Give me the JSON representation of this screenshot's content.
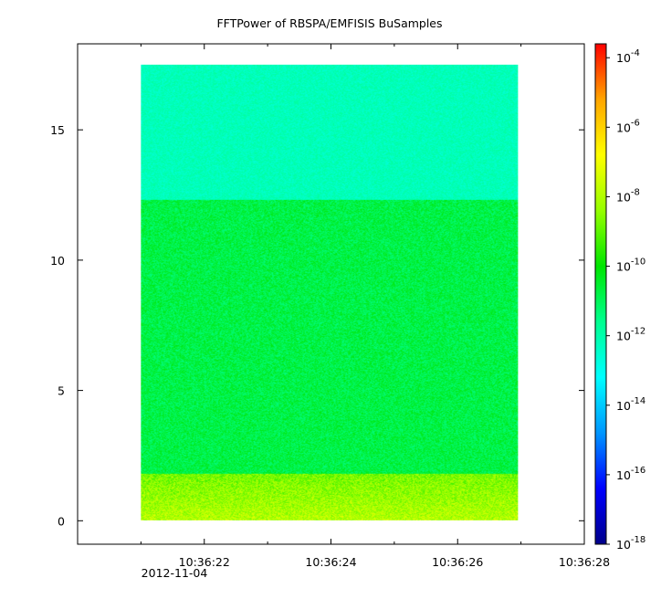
{
  "chart_data": {
    "type": "heatmap",
    "title": "FFTPower of RBSPA/EMFISIS  BuSamples",
    "xlabel": "",
    "ylabel": "",
    "x_ticks": [
      {
        "value": 2,
        "label": "10:36:22"
      },
      {
        "value": 4,
        "label": "10:36:24"
      },
      {
        "value": 6,
        "label": "10:36:26"
      },
      {
        "value": 8,
        "label": "10:36:28"
      }
    ],
    "x_minor_ticks": [
      1,
      3,
      5,
      7
    ],
    "x_date_label": "2012-11-04",
    "xlim": [
      0,
      8.0
    ],
    "y_ticks": [
      {
        "value": 0,
        "label": "0"
      },
      {
        "value": 5,
        "label": "5"
      },
      {
        "value": 10,
        "label": "10"
      },
      {
        "value": 15,
        "label": "15"
      }
    ],
    "ylim": [
      -0.9,
      18.3
    ],
    "data_extent": {
      "x": [
        1.0,
        6.95
      ],
      "y": [
        0.0,
        17.5
      ]
    },
    "colorbar": {
      "scale": "log",
      "range_exponents": [
        -18,
        -3.6
      ],
      "ticks": [
        {
          "exponent": -4,
          "label": "10",
          "sup": "-4"
        },
        {
          "exponent": -6,
          "label": "10",
          "sup": "-6"
        },
        {
          "exponent": -8,
          "label": "10",
          "sup": "-8"
        },
        {
          "exponent": -10,
          "label": "10",
          "sup": "-10"
        },
        {
          "exponent": -12,
          "label": "10",
          "sup": "-12"
        },
        {
          "exponent": -14,
          "label": "10",
          "sup": "-14"
        },
        {
          "exponent": -16,
          "label": "10",
          "sup": "-16"
        },
        {
          "exponent": -18,
          "label": "10",
          "sup": "-18"
        }
      ],
      "colors": [
        "#00008a",
        "#0000ff",
        "#0096ff",
        "#00ffff",
        "#00ff90",
        "#00e600",
        "#96ff00",
        "#ffff00",
        "#ffa500",
        "#ff0000"
      ]
    },
    "bands": [
      {
        "y_range": [
          0.0,
          1.8
        ],
        "log_power_range": [
          -8.7,
          -7.2
        ],
        "description_color": "#ffb400"
      },
      {
        "y_range": [
          1.8,
          12.3
        ],
        "log_power_range": [
          -11.4,
          -10.2
        ],
        "description_color": "#22e01e"
      },
      {
        "y_range": [
          12.3,
          17.5
        ],
        "log_power_range": [
          -12.6,
          -11.8
        ],
        "description_color": "#1af07a"
      }
    ],
    "grid": false
  }
}
